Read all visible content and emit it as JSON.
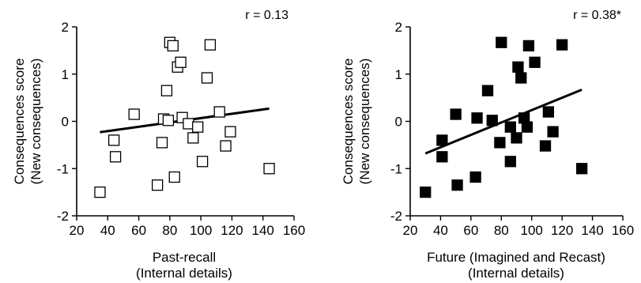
{
  "chart_data": [
    {
      "type": "scatter",
      "annotation": "r = 0.13",
      "xlabel": [
        "Past-recall",
        "(Internal details)"
      ],
      "ylabel": [
        "Consequences score",
        "(New consequences)"
      ],
      "xlim": [
        20,
        160
      ],
      "ylim": [
        -2,
        2
      ],
      "xticks": [
        20,
        40,
        60,
        80,
        100,
        120,
        140,
        160
      ],
      "yticks": [
        -2,
        -1,
        0,
        1,
        2
      ],
      "marker": "open-square",
      "points": [
        {
          "x": 35,
          "y": -1.5
        },
        {
          "x": 44,
          "y": -0.4
        },
        {
          "x": 45,
          "y": -0.75
        },
        {
          "x": 57,
          "y": 0.15
        },
        {
          "x": 72,
          "y": -1.35
        },
        {
          "x": 75,
          "y": -0.45
        },
        {
          "x": 76,
          "y": 0.05
        },
        {
          "x": 78,
          "y": 0.65
        },
        {
          "x": 79,
          "y": 0.02
        },
        {
          "x": 80,
          "y": 1.67
        },
        {
          "x": 82,
          "y": 1.6
        },
        {
          "x": 83,
          "y": -1.18
        },
        {
          "x": 85,
          "y": 1.15
        },
        {
          "x": 87,
          "y": 1.25
        },
        {
          "x": 88,
          "y": 0.08
        },
        {
          "x": 92,
          "y": -0.05
        },
        {
          "x": 95,
          "y": -0.35
        },
        {
          "x": 98,
          "y": -0.12
        },
        {
          "x": 101,
          "y": -0.85
        },
        {
          "x": 104,
          "y": 0.92
        },
        {
          "x": 106,
          "y": 1.62
        },
        {
          "x": 112,
          "y": 0.2
        },
        {
          "x": 116,
          "y": -0.52
        },
        {
          "x": 119,
          "y": -0.22
        },
        {
          "x": 144,
          "y": -1.0
        }
      ],
      "fit": {
        "x": [
          35,
          144
        ],
        "y": [
          -0.23,
          0.27
        ]
      }
    },
    {
      "type": "scatter",
      "annotation": "r = 0.38*",
      "xlabel": [
        "Future (Imagined and Recast)",
        "(Internal details)"
      ],
      "ylabel": [
        "Consequences score",
        "(New consequences)"
      ],
      "xlim": [
        20,
        160
      ],
      "ylim": [
        -2,
        2
      ],
      "xticks": [
        20,
        40,
        60,
        80,
        100,
        120,
        140,
        160
      ],
      "yticks": [
        -2,
        -1,
        0,
        1,
        2
      ],
      "marker": "filled-square",
      "points": [
        {
          "x": 30,
          "y": -1.5
        },
        {
          "x": 41,
          "y": -0.4
        },
        {
          "x": 41,
          "y": -0.75
        },
        {
          "x": 51,
          "y": -1.35
        },
        {
          "x": 50,
          "y": 0.15
        },
        {
          "x": 63,
          "y": -1.18
        },
        {
          "x": 64,
          "y": 0.07
        },
        {
          "x": 71,
          "y": 0.65
        },
        {
          "x": 74,
          "y": 0.02
        },
        {
          "x": 79,
          "y": -0.45
        },
        {
          "x": 80,
          "y": 1.67
        },
        {
          "x": 86,
          "y": -0.85
        },
        {
          "x": 86,
          "y": -0.12
        },
        {
          "x": 90,
          "y": -0.35
        },
        {
          "x": 91,
          "y": 1.15
        },
        {
          "x": 93,
          "y": 0.92
        },
        {
          "x": 95,
          "y": 0.07
        },
        {
          "x": 97,
          "y": -0.12
        },
        {
          "x": 98,
          "y": 1.6
        },
        {
          "x": 102,
          "y": 1.25
        },
        {
          "x": 109,
          "y": -0.52
        },
        {
          "x": 111,
          "y": 0.2
        },
        {
          "x": 114,
          "y": -0.22
        },
        {
          "x": 120,
          "y": 1.62
        },
        {
          "x": 133,
          "y": -1.0
        }
      ],
      "fit": {
        "x": [
          30,
          133
        ],
        "y": [
          -0.68,
          0.67
        ]
      }
    }
  ]
}
